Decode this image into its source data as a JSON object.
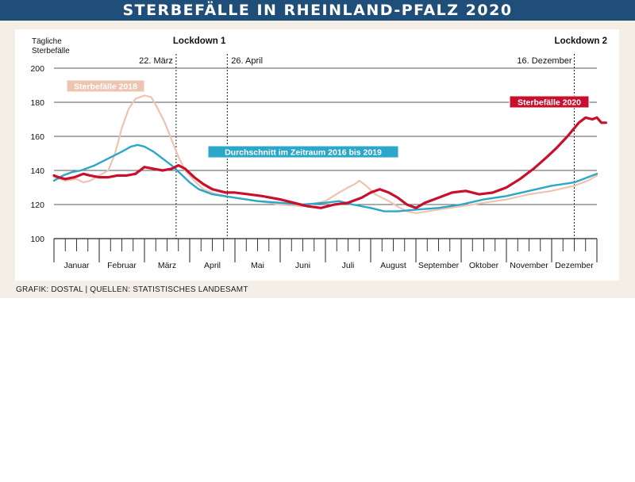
{
  "header": {
    "title": "STERBEFÄLLE IN RHEINLAND-PFALZ 2020"
  },
  "footer": {
    "source": "GRAFIK: DOSTAL | QUELLEN: STATISTISCHES LANDESAMT"
  },
  "colors": {
    "title_bar": "#1f4e78",
    "sterbefaelle_2020": "#c8102e",
    "durchschnitt": "#2aa7c9",
    "sterbefaelle_2018": "#edc4b0"
  },
  "chart_data": {
    "type": "line",
    "ylabel_line1": "Tägliche",
    "ylabel_line2": "Sterbefälle",
    "ylim": [
      100,
      200
    ],
    "yticks": [
      100,
      120,
      140,
      160,
      180,
      200
    ],
    "xlim": [
      0,
      12
    ],
    "months": [
      "Januar",
      "Februar",
      "März",
      "April",
      "Mai",
      "Juni",
      "Juli",
      "August",
      "September",
      "Oktober",
      "November",
      "Dezember"
    ],
    "grid": true,
    "events": [
      {
        "label": "Lockdown 1",
        "date": "22. März",
        "x": 2.7
      },
      {
        "date": "26. April",
        "x": 3.83
      },
      {
        "label": "Lockdown 2",
        "date": "16. Dezember",
        "x": 11.5
      }
    ],
    "series": [
      {
        "name": "Sterbefälle 2018",
        "color": "#edc4b0",
        "points": [
          [
            0,
            136
          ],
          [
            0.25,
            134
          ],
          [
            0.5,
            135
          ],
          [
            0.65,
            133
          ],
          [
            0.8,
            134
          ],
          [
            1.0,
            137
          ],
          [
            1.2,
            140
          ],
          [
            1.35,
            150
          ],
          [
            1.5,
            165
          ],
          [
            1.65,
            176
          ],
          [
            1.8,
            182
          ],
          [
            2.0,
            184
          ],
          [
            2.15,
            183
          ],
          [
            2.3,
            176
          ],
          [
            2.45,
            168
          ],
          [
            2.6,
            158
          ],
          [
            2.75,
            148
          ],
          [
            2.9,
            140
          ],
          [
            3.1,
            134
          ],
          [
            3.3,
            129
          ],
          [
            3.6,
            126
          ],
          [
            4.0,
            124
          ],
          [
            4.5,
            122
          ],
          [
            5.0,
            120
          ],
          [
            5.5,
            119
          ],
          [
            6.0,
            122
          ],
          [
            6.3,
            127
          ],
          [
            6.5,
            130
          ],
          [
            6.65,
            132
          ],
          [
            6.75,
            134
          ],
          [
            6.9,
            131
          ],
          [
            7.1,
            126
          ],
          [
            7.4,
            122
          ],
          [
            7.65,
            118
          ],
          [
            7.8,
            116
          ],
          [
            8.0,
            115
          ],
          [
            8.5,
            117
          ],
          [
            9.0,
            119
          ],
          [
            9.5,
            121
          ],
          [
            10.0,
            123
          ],
          [
            10.5,
            126
          ],
          [
            11.0,
            128
          ],
          [
            11.5,
            131
          ],
          [
            11.8,
            134
          ],
          [
            12.0,
            137
          ]
        ]
      },
      {
        "name": "Durchschnitt im Zeitraum 2016 bis 2019",
        "color": "#2aa7c9",
        "points": [
          [
            0,
            134
          ],
          [
            0.2,
            137
          ],
          [
            0.4,
            139
          ],
          [
            0.6,
            140
          ],
          [
            0.9,
            143
          ],
          [
            1.2,
            147
          ],
          [
            1.5,
            151
          ],
          [
            1.7,
            154
          ],
          [
            1.85,
            155
          ],
          [
            2.0,
            154
          ],
          [
            2.2,
            151
          ],
          [
            2.4,
            147
          ],
          [
            2.6,
            143
          ],
          [
            2.8,
            138
          ],
          [
            3.0,
            133
          ],
          [
            3.2,
            129
          ],
          [
            3.5,
            126
          ],
          [
            4.0,
            124
          ],
          [
            4.5,
            122
          ],
          [
            5.0,
            121
          ],
          [
            5.5,
            120
          ],
          [
            6.0,
            121
          ],
          [
            6.3,
            122
          ],
          [
            6.6,
            120
          ],
          [
            7.0,
            118
          ],
          [
            7.3,
            116
          ],
          [
            7.6,
            116
          ],
          [
            8.0,
            117
          ],
          [
            8.5,
            118
          ],
          [
            9.0,
            120
          ],
          [
            9.5,
            123
          ],
          [
            10.0,
            125
          ],
          [
            10.5,
            128
          ],
          [
            11.0,
            131
          ],
          [
            11.5,
            133
          ],
          [
            12.0,
            138
          ]
        ]
      },
      {
        "name": "Sterbefälle 2020",
        "color": "#c8102e",
        "points": [
          [
            0,
            137
          ],
          [
            0.1,
            136
          ],
          [
            0.25,
            135
          ],
          [
            0.45,
            136
          ],
          [
            0.65,
            138
          ],
          [
            0.8,
            137
          ],
          [
            1.0,
            136
          ],
          [
            1.2,
            136
          ],
          [
            1.4,
            137
          ],
          [
            1.6,
            137
          ],
          [
            1.8,
            138
          ],
          [
            2.0,
            142
          ],
          [
            2.2,
            141
          ],
          [
            2.4,
            140
          ],
          [
            2.6,
            141
          ],
          [
            2.75,
            143
          ],
          [
            2.9,
            141
          ],
          [
            3.1,
            136
          ],
          [
            3.3,
            132
          ],
          [
            3.5,
            129
          ],
          [
            3.8,
            127
          ],
          [
            4.0,
            127
          ],
          [
            4.3,
            126
          ],
          [
            4.6,
            125
          ],
          [
            5.0,
            123
          ],
          [
            5.3,
            121
          ],
          [
            5.6,
            119
          ],
          [
            5.9,
            118
          ],
          [
            6.2,
            120
          ],
          [
            6.5,
            121
          ],
          [
            6.8,
            124
          ],
          [
            7.0,
            127
          ],
          [
            7.2,
            129
          ],
          [
            7.4,
            127
          ],
          [
            7.6,
            124
          ],
          [
            7.8,
            120
          ],
          [
            8.0,
            118
          ],
          [
            8.2,
            121
          ],
          [
            8.5,
            124
          ],
          [
            8.8,
            127
          ],
          [
            9.1,
            128
          ],
          [
            9.4,
            126
          ],
          [
            9.7,
            127
          ],
          [
            10.0,
            130
          ],
          [
            10.3,
            135
          ],
          [
            10.6,
            141
          ],
          [
            10.9,
            148
          ],
          [
            11.1,
            153
          ],
          [
            11.35,
            160
          ],
          [
            11.6,
            168
          ],
          [
            11.75,
            171
          ],
          [
            11.9,
            170
          ],
          [
            12.0,
            171
          ],
          [
            12.1,
            168
          ],
          [
            12.2,
            168
          ]
        ]
      }
    ]
  }
}
